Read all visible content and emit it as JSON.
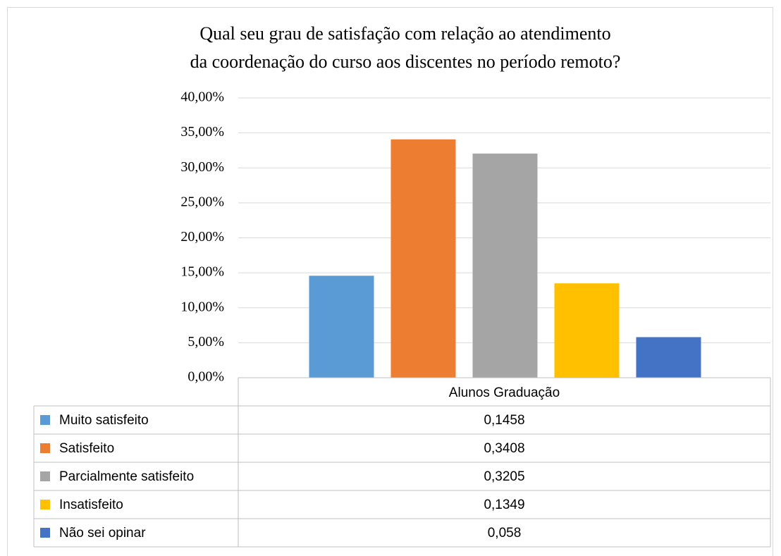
{
  "chart_data": {
    "type": "bar",
    "title": "Qual seu grau de satisfação com relação ao atendimento da coordenação do curso aos discentes no período remoto?",
    "categories": [
      "Alunos Graduação"
    ],
    "series": [
      {
        "name": "Muito satisfeito",
        "color": "#5b9bd5",
        "values": [
          14.58
        ],
        "value_labels": [
          "0,1458"
        ]
      },
      {
        "name": "Satisfeito",
        "color": "#ed7d31",
        "values": [
          34.08
        ],
        "value_labels": [
          "0,3408"
        ]
      },
      {
        "name": "Parcialmente satisfeito",
        "color": "#a5a5a5",
        "values": [
          32.05
        ],
        "value_labels": [
          "0,3205"
        ]
      },
      {
        "name": "Insatisfeito",
        "color": "#ffc000",
        "values": [
          13.49
        ],
        "value_labels": [
          "0,1349"
        ]
      },
      {
        "name": "Não sei opinar",
        "color": "#4472c4",
        "values": [
          5.8
        ],
        "value_labels": [
          "0,058"
        ]
      }
    ],
    "ylim": [
      0,
      40
    ],
    "yticks": [
      {
        "value": 0,
        "label": "0,00%"
      },
      {
        "value": 5,
        "label": "5,00%"
      },
      {
        "value": 10,
        "label": "10,00%"
      },
      {
        "value": 15,
        "label": "15,00%"
      },
      {
        "value": 20,
        "label": "20,00%"
      },
      {
        "value": 25,
        "label": "25,00%"
      },
      {
        "value": 30,
        "label": "30,00%"
      },
      {
        "value": 35,
        "label": "35,00%"
      },
      {
        "value": 40,
        "label": "40,00%"
      }
    ],
    "grid": true
  }
}
